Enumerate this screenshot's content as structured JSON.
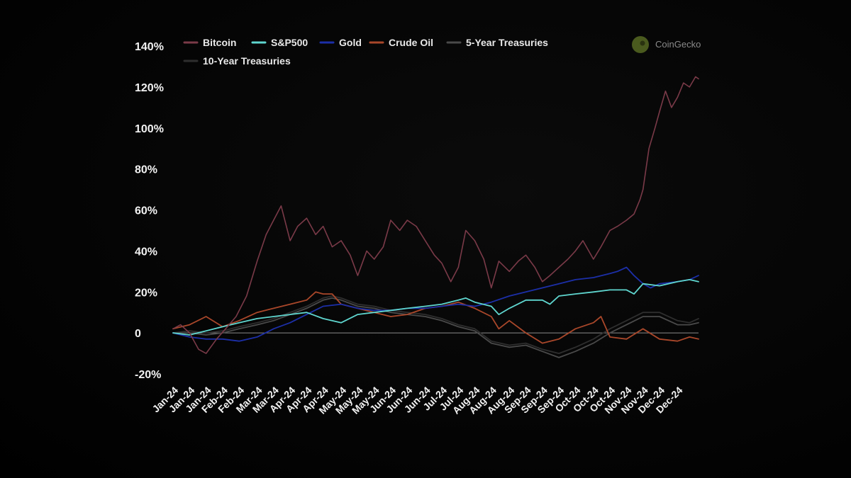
{
  "chart_data": {
    "type": "line",
    "title": "",
    "xlabel": "",
    "ylabel": "",
    "y_unit": "%",
    "ylim": [
      -20,
      140
    ],
    "y_ticks": [
      140,
      120,
      100,
      80,
      60,
      40,
      20,
      0,
      -20
    ],
    "y_tick_labels": [
      "140%",
      "120%",
      "100%",
      "80%",
      "60%",
      "40%",
      "20%",
      "0",
      "-20%"
    ],
    "x_tick_labels": [
      "Jan-24",
      "Jan-24",
      "Jan-24",
      "Feb-24",
      "Feb-24",
      "Mar-24",
      "Mar-24",
      "Apr-24",
      "Apr-24",
      "Apr-24",
      "May-24",
      "May-24",
      "May-24",
      "Jun-24",
      "Jun-24",
      "Jun-24",
      "Jul-24",
      "Jul-24",
      "Aug-24",
      "Aug-24",
      "Aug-24",
      "Sep-24",
      "Sep-24",
      "Sep-24",
      "Oct-24",
      "Oct-24",
      "Oct-24",
      "Nov-24",
      "Nov-24",
      "Dec-24",
      "Dec-24"
    ],
    "x_tick_dates": [
      "2024-01-01",
      "2024-01-12",
      "2024-01-23",
      "2024-02-03",
      "2024-02-14",
      "2024-02-26",
      "2024-03-08",
      "2024-03-19",
      "2024-03-30",
      "2024-04-10",
      "2024-04-22",
      "2024-05-03",
      "2024-05-14",
      "2024-05-25",
      "2024-06-05",
      "2024-06-17",
      "2024-06-28",
      "2024-07-09",
      "2024-07-20",
      "2024-07-31",
      "2024-08-12",
      "2024-08-23",
      "2024-09-03",
      "2024-09-14",
      "2024-09-25",
      "2024-10-07",
      "2024-10-18",
      "2024-10-29",
      "2024-11-09",
      "2024-11-20",
      "2024-12-02"
    ],
    "x_range": [
      "2024-01-01",
      "2024-12-16"
    ],
    "legend_position": "top-left",
    "grid": false,
    "baseline_y": 0,
    "brand": "CoinGecko",
    "colors": {
      "background": "#050505",
      "text": "#f2f2f2",
      "zero_line": "#8a8a8a"
    },
    "series": [
      {
        "name": "Bitcoin",
        "color": "#7a3a48",
        "x": [
          "2024-01-01",
          "2024-01-06",
          "2024-01-12",
          "2024-01-18",
          "2024-01-23",
          "2024-01-30",
          "2024-02-05",
          "2024-02-12",
          "2024-02-19",
          "2024-02-26",
          "2024-03-03",
          "2024-03-08",
          "2024-03-13",
          "2024-03-19",
          "2024-03-24",
          "2024-03-30",
          "2024-04-05",
          "2024-04-10",
          "2024-04-16",
          "2024-04-22",
          "2024-04-28",
          "2024-05-03",
          "2024-05-09",
          "2024-05-14",
          "2024-05-20",
          "2024-05-25",
          "2024-05-31",
          "2024-06-05",
          "2024-06-11",
          "2024-06-17",
          "2024-06-23",
          "2024-06-28",
          "2024-07-04",
          "2024-07-09",
          "2024-07-14",
          "2024-07-20",
          "2024-07-26",
          "2024-07-31",
          "2024-08-05",
          "2024-08-12",
          "2024-08-18",
          "2024-08-23",
          "2024-08-29",
          "2024-09-03",
          "2024-09-08",
          "2024-09-14",
          "2024-09-20",
          "2024-09-25",
          "2024-09-30",
          "2024-10-07",
          "2024-10-12",
          "2024-10-18",
          "2024-10-23",
          "2024-10-29",
          "2024-11-03",
          "2024-11-07",
          "2024-11-09",
          "2024-11-13",
          "2024-11-17",
          "2024-11-20",
          "2024-11-24",
          "2024-11-28",
          "2024-12-02",
          "2024-12-06",
          "2024-12-10",
          "2024-12-14",
          "2024-12-16"
        ],
        "values": [
          2,
          4,
          0,
          -8,
          -10,
          -3,
          2,
          8,
          18,
          35,
          48,
          55,
          62,
          45,
          52,
          56,
          48,
          52,
          42,
          45,
          38,
          28,
          40,
          36,
          42,
          55,
          50,
          55,
          52,
          45,
          38,
          34,
          25,
          32,
          50,
          45,
          36,
          22,
          35,
          30,
          35,
          38,
          32,
          25,
          28,
          32,
          36,
          40,
          45,
          36,
          42,
          50,
          52,
          55,
          58,
          65,
          70,
          90,
          100,
          108,
          118,
          110,
          115,
          122,
          120,
          125,
          124
        ]
      },
      {
        "name": "S&P500",
        "color": "#5fd6cf",
        "x": [
          "2024-01-01",
          "2024-01-12",
          "2024-01-23",
          "2024-02-03",
          "2024-02-14",
          "2024-02-26",
          "2024-03-08",
          "2024-03-19",
          "2024-03-30",
          "2024-04-10",
          "2024-04-22",
          "2024-05-03",
          "2024-05-14",
          "2024-05-25",
          "2024-06-05",
          "2024-06-17",
          "2024-06-28",
          "2024-07-09",
          "2024-07-14",
          "2024-07-20",
          "2024-07-31",
          "2024-08-05",
          "2024-08-12",
          "2024-08-23",
          "2024-09-03",
          "2024-09-08",
          "2024-09-14",
          "2024-09-25",
          "2024-10-07",
          "2024-10-18",
          "2024-10-29",
          "2024-11-03",
          "2024-11-09",
          "2024-11-20",
          "2024-12-02",
          "2024-12-10",
          "2024-12-16"
        ],
        "values": [
          0,
          -1,
          1,
          3,
          5,
          7,
          8,
          9,
          10,
          7,
          5,
          9,
          10,
          11,
          12,
          13,
          14,
          16,
          17,
          15,
          13,
          9,
          12,
          16,
          16,
          14,
          18,
          19,
          20,
          21,
          21,
          19,
          24,
          23,
          25,
          26,
          25
        ]
      },
      {
        "name": "Gold",
        "color": "#1c2fa8",
        "x": [
          "2024-01-01",
          "2024-01-12",
          "2024-01-23",
          "2024-02-03",
          "2024-02-14",
          "2024-02-26",
          "2024-03-08",
          "2024-03-19",
          "2024-03-30",
          "2024-04-10",
          "2024-04-22",
          "2024-05-03",
          "2024-05-14",
          "2024-05-25",
          "2024-06-05",
          "2024-06-17",
          "2024-06-28",
          "2024-07-09",
          "2024-07-20",
          "2024-07-31",
          "2024-08-12",
          "2024-08-23",
          "2024-09-03",
          "2024-09-14",
          "2024-09-25",
          "2024-10-07",
          "2024-10-18",
          "2024-10-23",
          "2024-10-29",
          "2024-11-03",
          "2024-11-09",
          "2024-11-14",
          "2024-11-20",
          "2024-12-02",
          "2024-12-10",
          "2024-12-16"
        ],
        "values": [
          0,
          -2,
          -3,
          -3,
          -4,
          -2,
          2,
          5,
          9,
          13,
          14,
          12,
          11,
          11,
          12,
          12,
          13,
          14,
          13,
          15,
          18,
          20,
          22,
          24,
          26,
          27,
          29,
          30,
          32,
          28,
          24,
          22,
          24,
          25,
          26,
          28
        ]
      },
      {
        "name": "Crude Oil",
        "color": "#a9472a",
        "x": [
          "2024-01-01",
          "2024-01-12",
          "2024-01-23",
          "2024-02-03",
          "2024-02-14",
          "2024-02-26",
          "2024-03-08",
          "2024-03-19",
          "2024-03-30",
          "2024-04-05",
          "2024-04-10",
          "2024-04-16",
          "2024-04-22",
          "2024-05-03",
          "2024-05-14",
          "2024-05-25",
          "2024-06-05",
          "2024-06-17",
          "2024-06-28",
          "2024-07-09",
          "2024-07-20",
          "2024-07-31",
          "2024-08-05",
          "2024-08-12",
          "2024-08-23",
          "2024-09-03",
          "2024-09-14",
          "2024-09-25",
          "2024-10-07",
          "2024-10-12",
          "2024-10-18",
          "2024-10-29",
          "2024-11-09",
          "2024-11-20",
          "2024-12-02",
          "2024-12-10",
          "2024-12-16"
        ],
        "values": [
          2,
          4,
          8,
          3,
          6,
          10,
          12,
          14,
          16,
          20,
          19,
          19,
          14,
          12,
          10,
          8,
          9,
          12,
          13,
          15,
          12,
          8,
          2,
          6,
          0,
          -5,
          -3,
          2,
          5,
          8,
          -2,
          -3,
          2,
          -3,
          -4,
          -2,
          -3
        ]
      },
      {
        "name": "5-Year Treasuries",
        "color": "#4a4a4a",
        "x": [
          "2024-01-01",
          "2024-01-12",
          "2024-01-23",
          "2024-02-03",
          "2024-02-14",
          "2024-02-26",
          "2024-03-08",
          "2024-03-19",
          "2024-03-30",
          "2024-04-10",
          "2024-04-16",
          "2024-04-22",
          "2024-05-03",
          "2024-05-14",
          "2024-05-25",
          "2024-06-05",
          "2024-06-17",
          "2024-06-28",
          "2024-07-09",
          "2024-07-20",
          "2024-07-31",
          "2024-08-12",
          "2024-08-23",
          "2024-09-03",
          "2024-09-14",
          "2024-09-25",
          "2024-10-07",
          "2024-10-18",
          "2024-10-29",
          "2024-11-09",
          "2024-11-20",
          "2024-12-02",
          "2024-12-10",
          "2024-12-16"
        ],
        "values": [
          0,
          0,
          -1,
          0,
          2,
          4,
          6,
          9,
          12,
          16,
          17,
          16,
          13,
          12,
          10,
          9,
          8,
          6,
          3,
          1,
          -5,
          -7,
          -6,
          -9,
          -12,
          -9,
          -5,
          0,
          4,
          8,
          8,
          4,
          4,
          5
        ]
      },
      {
        "name": "10-Year Treasuries",
        "color": "#2e2e2e",
        "x": [
          "2024-01-01",
          "2024-01-12",
          "2024-01-23",
          "2024-02-03",
          "2024-02-14",
          "2024-02-26",
          "2024-03-08",
          "2024-03-19",
          "2024-03-30",
          "2024-04-10",
          "2024-04-16",
          "2024-04-22",
          "2024-05-03",
          "2024-05-14",
          "2024-05-25",
          "2024-06-05",
          "2024-06-17",
          "2024-06-28",
          "2024-07-09",
          "2024-07-20",
          "2024-07-31",
          "2024-08-12",
          "2024-08-23",
          "2024-09-03",
          "2024-09-14",
          "2024-09-25",
          "2024-10-07",
          "2024-10-18",
          "2024-10-29",
          "2024-11-09",
          "2024-11-20",
          "2024-12-02",
          "2024-12-10",
          "2024-12-16"
        ],
        "values": [
          0,
          1,
          0,
          1,
          3,
          5,
          7,
          10,
          13,
          17,
          18,
          17,
          14,
          13,
          11,
          10,
          9,
          7,
          4,
          2,
          -4,
          -6,
          -5,
          -8,
          -10,
          -7,
          -3,
          2,
          6,
          10,
          10,
          6,
          5,
          7
        ]
      }
    ]
  }
}
